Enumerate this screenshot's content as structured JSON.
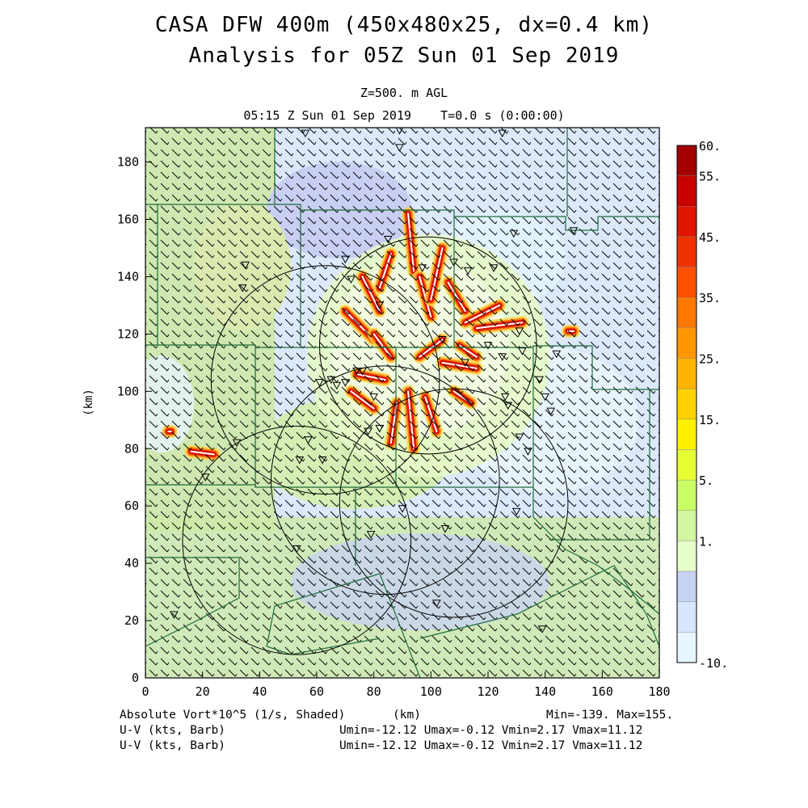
{
  "header": {
    "title_line1": "CASA DFW 400m (450x480x25, dx=0.4 km)",
    "title_line2": "Analysis for 05Z Sun 01 Sep 2019",
    "level": "Z=500. m AGL",
    "time": "05:15 Z Sun 01 Sep 2019    T=0.0 s (0:00:00)"
  },
  "axes": {
    "xlabel": "(km)",
    "ylabel": "(km)",
    "xlim": [
      0,
      180
    ],
    "ylim": [
      0,
      192
    ],
    "xticks": [
      "0",
      "20",
      "40",
      "60",
      "80",
      "100",
      "120",
      "140",
      "160",
      "180"
    ],
    "yticks": [
      "0",
      "20",
      "40",
      "60",
      "80",
      "100",
      "120",
      "140",
      "160",
      "180"
    ]
  },
  "colorbar": {
    "labels": [
      "60.",
      "55.",
      "45.",
      "35.",
      "25.",
      "15.",
      "5.",
      "1.",
      "-10."
    ],
    "colors": [
      "#a50000",
      "#c80000",
      "#e01400",
      "#f03200",
      "#ff5000",
      "#ff7800",
      "#ff9600",
      "#ffb400",
      "#ffd200",
      "#fff000",
      "#e6ff32",
      "#c8ff64",
      "#d2f5a0",
      "#e6ffc8",
      "#c8d2f5",
      "#d7e6fa",
      "#e6f5ff"
    ]
  },
  "footer": {
    "field": "Absolute Vort*10^5 (1/s, Shaded)",
    "xunit": "(km)",
    "minmax": "Min=-139. Max=155.",
    "wind1": "U-V (kts, Barb)",
    "wind2": "U-V (kts, Barb)",
    "range1": "Umin=-12.12 Umax=-0.12 Vmin=2.17 Vmax=11.12",
    "range2": "Umin=-12.12 Umax=-0.12 Vmin=2.17 Vmax=11.12"
  },
  "map_data": {
    "type": "heatmap",
    "radar_rings_km": [
      {
        "cx": 99,
        "cy": 116,
        "r": 38
      },
      {
        "cx": 63,
        "cy": 104,
        "r": 40
      },
      {
        "cx": 84,
        "cy": 69,
        "r": 40
      },
      {
        "cx": 108,
        "cy": 61,
        "r": 40
      },
      {
        "cx": 53,
        "cy": 48,
        "r": 40
      }
    ],
    "vortex_streaks_km": [
      [
        92,
        162,
        94,
        142
      ],
      [
        86,
        148,
        82,
        136
      ],
      [
        76,
        140,
        82,
        128
      ],
      [
        70,
        128,
        80,
        118
      ],
      [
        96,
        140,
        100,
        126
      ],
      [
        104,
        150,
        100,
        132
      ],
      [
        106,
        138,
        112,
        128
      ],
      [
        112,
        124,
        124,
        130
      ],
      [
        116,
        122,
        132,
        124
      ],
      [
        148,
        121,
        150,
        121
      ],
      [
        104,
        110,
        116,
        108
      ],
      [
        108,
        100,
        114,
        96
      ],
      [
        98,
        98,
        102,
        86
      ],
      [
        92,
        100,
        94,
        80
      ],
      [
        88,
        96,
        86,
        82
      ],
      [
        80,
        94,
        72,
        100
      ],
      [
        84,
        104,
        74,
        106
      ],
      [
        86,
        112,
        80,
        120
      ],
      [
        96,
        112,
        104,
        118
      ],
      [
        110,
        116,
        116,
        112
      ],
      [
        8,
        86,
        9,
        86
      ],
      [
        16,
        79,
        24,
        78
      ]
    ],
    "radar_sites_km": [
      [
        56,
        190
      ],
      [
        89,
        191
      ],
      [
        89,
        185
      ],
      [
        125,
        190
      ],
      [
        35,
        144
      ],
      [
        34,
        136
      ],
      [
        70,
        146
      ],
      [
        72,
        139
      ],
      [
        85,
        153
      ],
      [
        97,
        143
      ],
      [
        108,
        145
      ],
      [
        113,
        142
      ],
      [
        122,
        143
      ],
      [
        129,
        155
      ],
      [
        150,
        156
      ],
      [
        82,
        130
      ],
      [
        104,
        118
      ],
      [
        112,
        110
      ],
      [
        120,
        116
      ],
      [
        125,
        112
      ],
      [
        131,
        121
      ],
      [
        132,
        114
      ],
      [
        138,
        104
      ],
      [
        144,
        113
      ],
      [
        126,
        98
      ],
      [
        127,
        95
      ],
      [
        131,
        84
      ],
      [
        134,
        79
      ],
      [
        140,
        98
      ],
      [
        142,
        93
      ],
      [
        61,
        103
      ],
      [
        65,
        104
      ],
      [
        67,
        102
      ],
      [
        70,
        103
      ],
      [
        76,
        107
      ],
      [
        80,
        98
      ],
      [
        78,
        86
      ],
      [
        82,
        87
      ],
      [
        54,
        76
      ],
      [
        57,
        83
      ],
      [
        62,
        76
      ],
      [
        21,
        70
      ],
      [
        32,
        82
      ],
      [
        90,
        59
      ],
      [
        79,
        50
      ],
      [
        53,
        45
      ],
      [
        105,
        52
      ],
      [
        10,
        22
      ],
      [
        102,
        26
      ],
      [
        139,
        17
      ],
      [
        130,
        58
      ],
      [
        74,
        107
      ]
    ]
  }
}
